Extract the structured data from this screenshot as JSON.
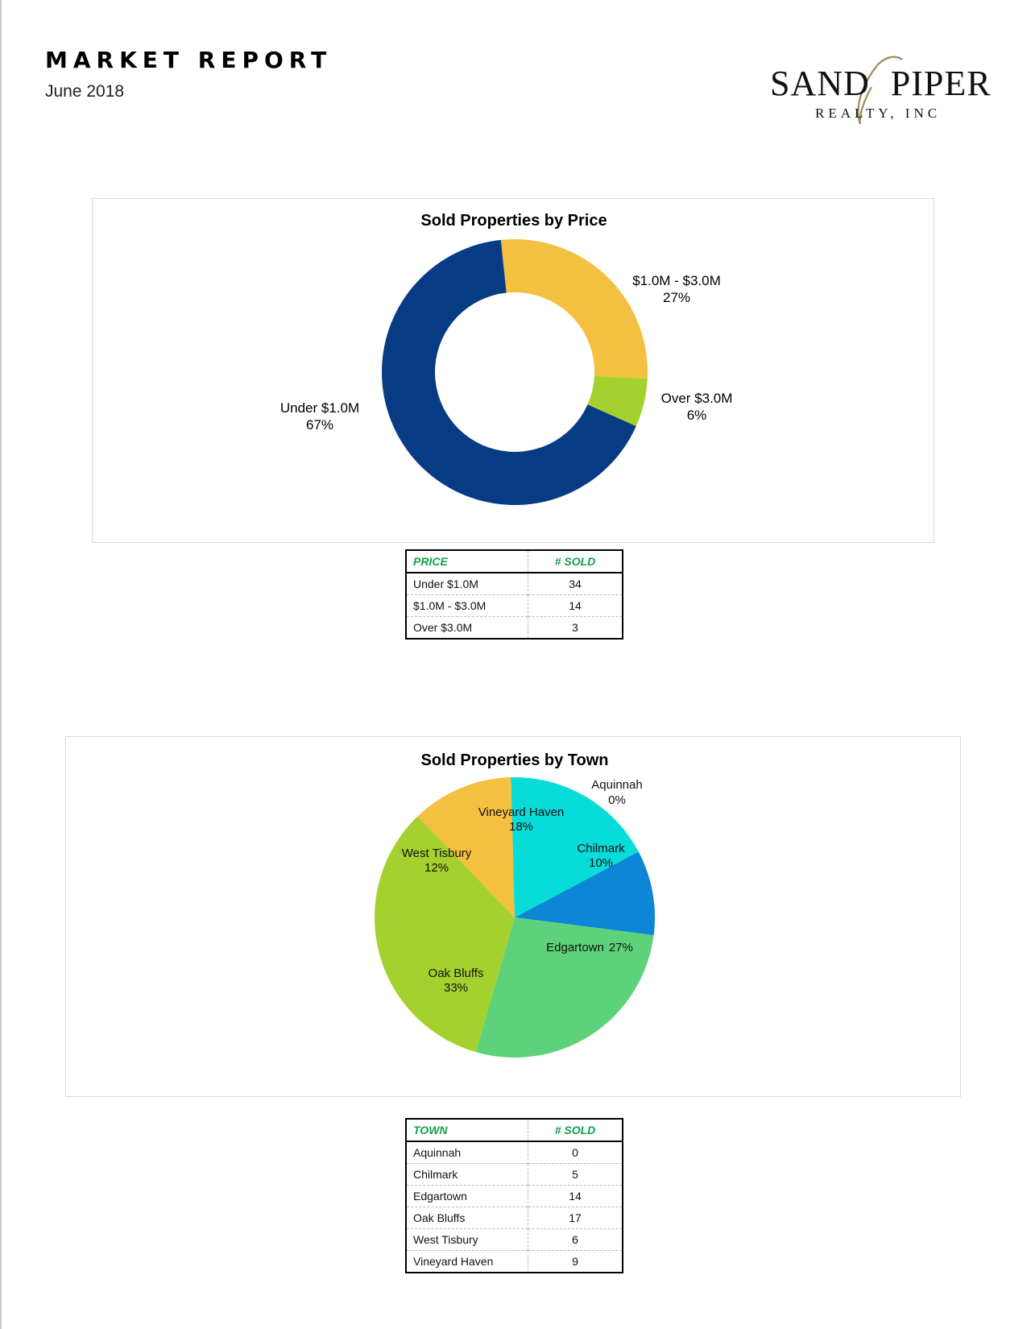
{
  "header": {
    "title": "MARKET REPORT",
    "date": "June 2018",
    "logo": {
      "main_left": "SAND",
      "main_right": "PIPER",
      "sub": "REALTY, INC"
    }
  },
  "chart_data": [
    {
      "type": "pie",
      "variant": "donut",
      "title": "Sold Properties by Price",
      "slices": [
        {
          "name": "$1.0M - $3.0M",
          "value": 14,
          "percent": "27%",
          "color": "#F4C040"
        },
        {
          "name": "Over $3.0M",
          "value": 3,
          "percent": "6%",
          "color": "#A5D12E"
        },
        {
          "name": "Under $1.0M",
          "value": 34,
          "percent": "67%",
          "color": "#073C84"
        }
      ]
    },
    {
      "type": "pie",
      "title": "Sold Properties by Town",
      "slices": [
        {
          "name": "Aquinnah",
          "value": 0,
          "percent": "0%",
          "color": "#1E5FA8"
        },
        {
          "name": "Chilmark",
          "value": 5,
          "percent": "10%",
          "color": "#0D86D5"
        },
        {
          "name": "Edgartown",
          "value": 14,
          "percent": "27%",
          "color": "#5DD27A"
        },
        {
          "name": "Oak Bluffs",
          "value": 17,
          "percent": "33%",
          "color": "#A5D12E"
        },
        {
          "name": "West Tisbury",
          "value": 6,
          "percent": "12%",
          "color": "#F4C040"
        },
        {
          "name": "Vineyard Haven",
          "value": 9,
          "percent": "18%",
          "color": "#07DCD8"
        }
      ]
    }
  ],
  "price_table": {
    "headers": [
      "PRICE",
      "# SOLD"
    ],
    "rows": [
      [
        "Under $1.0M",
        "34"
      ],
      [
        "$1.0M - $3.0M",
        "14"
      ],
      [
        "Over $3.0M",
        "3"
      ]
    ]
  },
  "town_table": {
    "headers": [
      "TOWN",
      "# SOLD"
    ],
    "rows": [
      [
        "Aquinnah",
        "0"
      ],
      [
        "Chilmark",
        "5"
      ],
      [
        "Edgartown",
        "14"
      ],
      [
        "Oak Bluffs",
        "17"
      ],
      [
        "West Tisbury",
        "6"
      ],
      [
        "Vineyard Haven",
        "9"
      ]
    ]
  }
}
